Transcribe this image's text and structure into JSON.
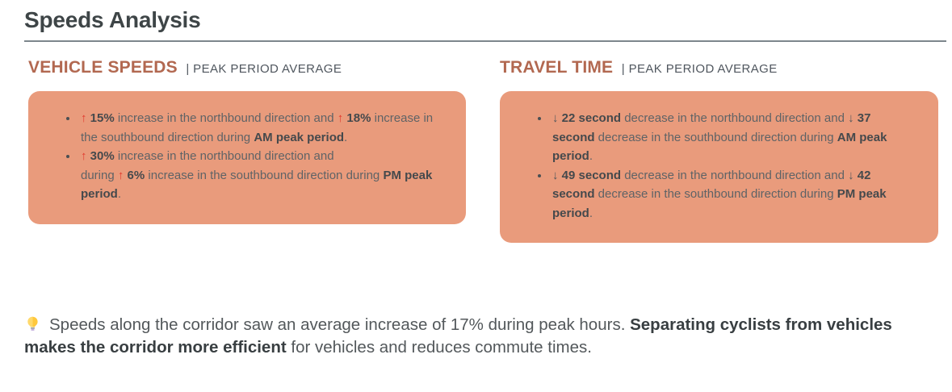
{
  "page": {
    "title": "Speeds Analysis"
  },
  "sections": [
    {
      "id": "vehicle-speeds",
      "title": "VEHICLE SPEEDS",
      "subtitle": "| PEAK PERIOD AVERAGE",
      "bullets": [
        [
          {
            "t": "↑ ",
            "s": "up"
          },
          {
            "t": "15%",
            "s": "b"
          },
          {
            "t": " increase in the northbound direction and ",
            "s": "n"
          },
          {
            "t": "↑ ",
            "s": "up"
          },
          {
            "t": "18%",
            "s": "b"
          },
          {
            "t": " increase in the southbound direction during ",
            "s": "n"
          },
          {
            "t": "AM peak period",
            "s": "b"
          },
          {
            "t": ".",
            "s": "n"
          }
        ],
        [
          {
            "t": "↑ ",
            "s": "up"
          },
          {
            "t": "30%",
            "s": "b"
          },
          {
            "t": " increase in the northbound direction and",
            "s": "n"
          },
          {
            "t": "",
            "s": "br"
          },
          {
            "t": "during ",
            "s": "n"
          },
          {
            "t": "↑ ",
            "s": "up"
          },
          {
            "t": "6%",
            "s": "b"
          },
          {
            "t": " increase in the southbound direction during ",
            "s": "n"
          },
          {
            "t": "PM peak period",
            "s": "b"
          },
          {
            "t": ".",
            "s": "n"
          }
        ]
      ]
    },
    {
      "id": "travel-time",
      "title": "TRAVEL TIME",
      "subtitle": "| PEAK PERIOD AVERAGE",
      "bullets": [
        [
          {
            "t": "↓ ",
            "s": "down"
          },
          {
            "t": "22 second",
            "s": "b"
          },
          {
            "t": " decrease in the northbound direction and ",
            "s": "n"
          },
          {
            "t": "↓ ",
            "s": "down"
          },
          {
            "t": "37 second",
            "s": "b"
          },
          {
            "t": " decrease in the southbound direction during ",
            "s": "n"
          },
          {
            "t": "AM peak period",
            "s": "b"
          },
          {
            "t": ".",
            "s": "n"
          }
        ],
        [
          {
            "t": "↓ ",
            "s": "down"
          },
          {
            "t": "49 second",
            "s": "b"
          },
          {
            "t": " decrease in the northbound direction and ",
            "s": "n"
          },
          {
            "t": "↓ ",
            "s": "down"
          },
          {
            "t": "42 second",
            "s": "b"
          },
          {
            "t": " decrease in the southbound direction during ",
            "s": "n"
          },
          {
            "t": "PM peak period",
            "s": "b"
          },
          {
            "t": ".",
            "s": "n"
          }
        ]
      ]
    }
  ],
  "summary": {
    "icon": "lightbulb-icon",
    "segments": [
      {
        "t": "Speeds along the corridor saw an average increase of 17% during peak hours. ",
        "s": "n"
      },
      {
        "t": "Separating cyclists from vehicles makes the corridor more efficient",
        "s": "b"
      },
      {
        "t": " for vehicles and reduces commute times.",
        "s": "n"
      }
    ]
  },
  "colors": {
    "callout_bg": "#E99B7C",
    "section_title": "#B26850",
    "arrow_up": "#E23B2E",
    "arrow_down": "#54585B",
    "text_normal": "#5F6366",
    "text_bold": "#45494C",
    "page_title": "#3E4547",
    "divider": "#7D868C",
    "subtitle": "#4F565E"
  }
}
